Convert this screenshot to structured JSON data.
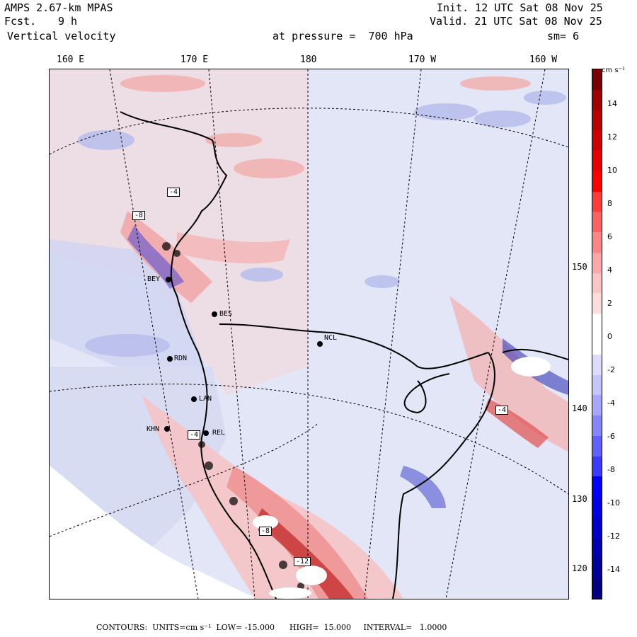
{
  "header": {
    "model": "AMPS 2.67-km MPAS",
    "fcst_label": "Fcst.",
    "fcst_value": "9 h",
    "field": "Vertical velocity",
    "init": "Init. 12 UTC Sat 08 Nov 25",
    "valid": "Valid. 21 UTC Sat 08 Nov 25",
    "level": "at pressure =  700 hPa",
    "smoothing": "sm= 6"
  },
  "longitude_labels": [
    "160 E",
    "170 E",
    "180",
    "170 W",
    "160 W"
  ],
  "latitude_labels": [
    "150 W",
    "140 W",
    "130 W",
    "120 W"
  ],
  "stations": [
    "BEY",
    "BES",
    "NCL",
    "RDN",
    "LAN",
    "KHN",
    "REL"
  ],
  "contour_box_labels": [
    "-4",
    "-8",
    "-4",
    "-4",
    "-8",
    "-12"
  ],
  "colorbar": {
    "units": "cm s⁻¹",
    "ticks": [
      "14",
      "12",
      "10",
      "8",
      "6",
      "4",
      "2",
      "0",
      "-2",
      "-4",
      "-6",
      "-8",
      "-10",
      "-12",
      "-14"
    ],
    "colors": [
      "#7a0000",
      "#a00000",
      "#b80000",
      "#d00000",
      "#e60000",
      "#ff0000",
      "#ff3a3a",
      "#ff6060",
      "#ff8585",
      "#ffa6a6",
      "#ffc4c4",
      "#ffdcdc",
      "#ffffff",
      "#ffffff",
      "#dcdcff",
      "#c4c4ff",
      "#a6a6ff",
      "#8585ff",
      "#6060ff",
      "#3a3aff",
      "#0000ff",
      "#0000e6",
      "#0000cc",
      "#0000b3",
      "#00009a",
      "#000080"
    ]
  },
  "footer": "CONTOURS:  UNITS=cm s⁻¹  LOW= -15.000      HIGH=  15.000     INTERVAL=   1.0000"
}
